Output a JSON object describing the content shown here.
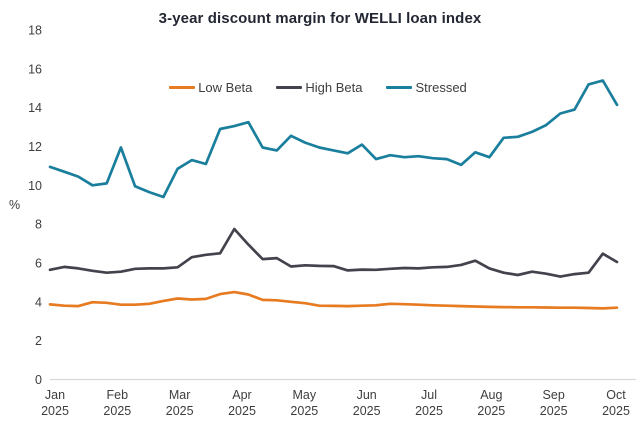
{
  "chart_data": {
    "type": "line",
    "title": "3-year discount margin for WELLI loan index",
    "ylabel": "%",
    "ylim": [
      0,
      18
    ],
    "y_ticks": [
      0,
      2,
      4,
      6,
      8,
      10,
      12,
      14,
      16,
      18
    ],
    "x_months": [
      "Jan",
      "Feb",
      "Mar",
      "Apr",
      "May",
      "Jun",
      "Jul",
      "Aug",
      "Sep",
      "Oct"
    ],
    "x_year": "2025",
    "grid": false,
    "legend_position": "top-center",
    "series": [
      {
        "name": "Low Beta",
        "color": "#E77B21",
        "values": [
          3.87,
          3.8,
          3.78,
          3.98,
          3.95,
          3.85,
          3.85,
          3.9,
          4.05,
          4.17,
          4.12,
          4.15,
          4.4,
          4.5,
          4.38,
          4.1,
          4.08,
          4.0,
          3.93,
          3.8,
          3.79,
          3.78,
          3.8,
          3.82,
          3.9,
          3.88,
          3.85,
          3.82,
          3.8,
          3.78,
          3.76,
          3.74,
          3.73,
          3.72,
          3.72,
          3.71,
          3.7,
          3.7,
          3.68,
          3.66,
          3.7
        ]
      },
      {
        "name": "High Beta",
        "color": "#42434C",
        "values": [
          5.65,
          5.8,
          5.72,
          5.6,
          5.5,
          5.55,
          5.7,
          5.72,
          5.72,
          5.78,
          6.3,
          6.42,
          6.5,
          7.75,
          6.95,
          6.2,
          6.25,
          5.82,
          5.88,
          5.85,
          5.84,
          5.62,
          5.66,
          5.65,
          5.7,
          5.74,
          5.72,
          5.78,
          5.8,
          5.9,
          6.12,
          5.72,
          5.5,
          5.38,
          5.55,
          5.45,
          5.3,
          5.43,
          5.5,
          6.48,
          6.05
        ]
      },
      {
        "name": "Stressed",
        "color": "#1A7E9D",
        "values": [
          10.95,
          10.7,
          10.45,
          10.0,
          10.1,
          11.95,
          9.95,
          9.65,
          9.4,
          10.85,
          11.3,
          11.1,
          12.9,
          13.05,
          13.25,
          11.95,
          11.8,
          12.55,
          12.2,
          11.95,
          11.8,
          11.65,
          12.1,
          11.35,
          11.55,
          11.45,
          11.5,
          11.4,
          11.35,
          11.05,
          11.7,
          11.45,
          12.45,
          12.5,
          12.75,
          13.1,
          13.7,
          13.9,
          15.2,
          15.4,
          14.15
        ]
      }
    ]
  },
  "colors": {
    "title": "#232733",
    "axis_text": "#3E3E3E",
    "axis_line": "#D9D9D9",
    "background": "#FFFFFF"
  }
}
